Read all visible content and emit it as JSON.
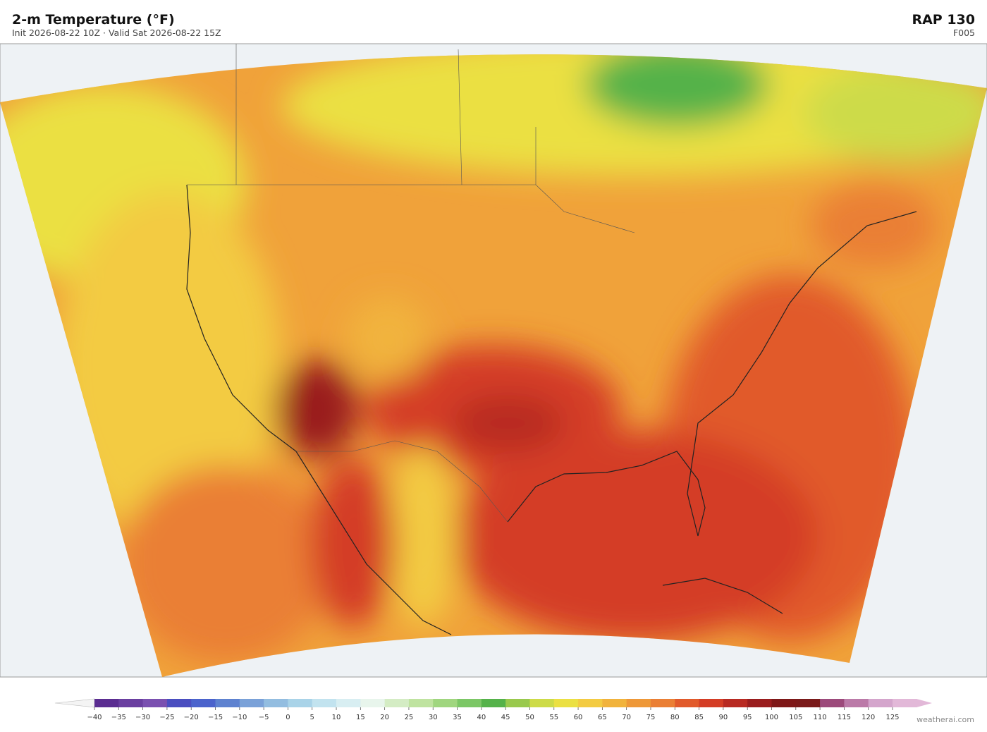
{
  "header": {
    "title": "2-m Temperature  (°F)",
    "subtitle": "Init 2026-08-22 10Z  ·  Valid Sat 2026-08-22 15Z",
    "model": "RAP  130",
    "forecast_hour": "F005"
  },
  "colorbar": {
    "labels": [
      "−40",
      "−35",
      "−30",
      "−25",
      "−20",
      "−15",
      "−10",
      "−5",
      "0",
      "5",
      "10",
      "15",
      "20",
      "25",
      "30",
      "35",
      "40",
      "45",
      "50",
      "55",
      "60",
      "65",
      "70",
      "75",
      "80",
      "85",
      "90",
      "95",
      "100",
      "105",
      "110",
      "115",
      "120",
      "125"
    ],
    "colors": [
      "#5b2d91",
      "#6a3fa0",
      "#7a50b0",
      "#4a4ec0",
      "#4b63cc",
      "#5e82d0",
      "#7aa1d8",
      "#93bde0",
      "#a9d3e8",
      "#c2e3ef",
      "#d8eef2",
      "#e8f5ec",
      "#d4ecc4",
      "#bfe3a0",
      "#a0d67f",
      "#7cc766",
      "#55b24a",
      "#99c94d",
      "#cddb48",
      "#ebe043",
      "#f3cb42",
      "#f1b33c",
      "#ee9838",
      "#ea7f35",
      "#e15a2b",
      "#d43d25",
      "#b82a22",
      "#9a1d1e",
      "#7e1818",
      "#7a1a1a",
      "#9c4a7b",
      "#bb7aa8",
      "#d4a5cc",
      "#e2b8d8"
    ]
  },
  "footer": {
    "credit": "weatherai.com"
  }
}
